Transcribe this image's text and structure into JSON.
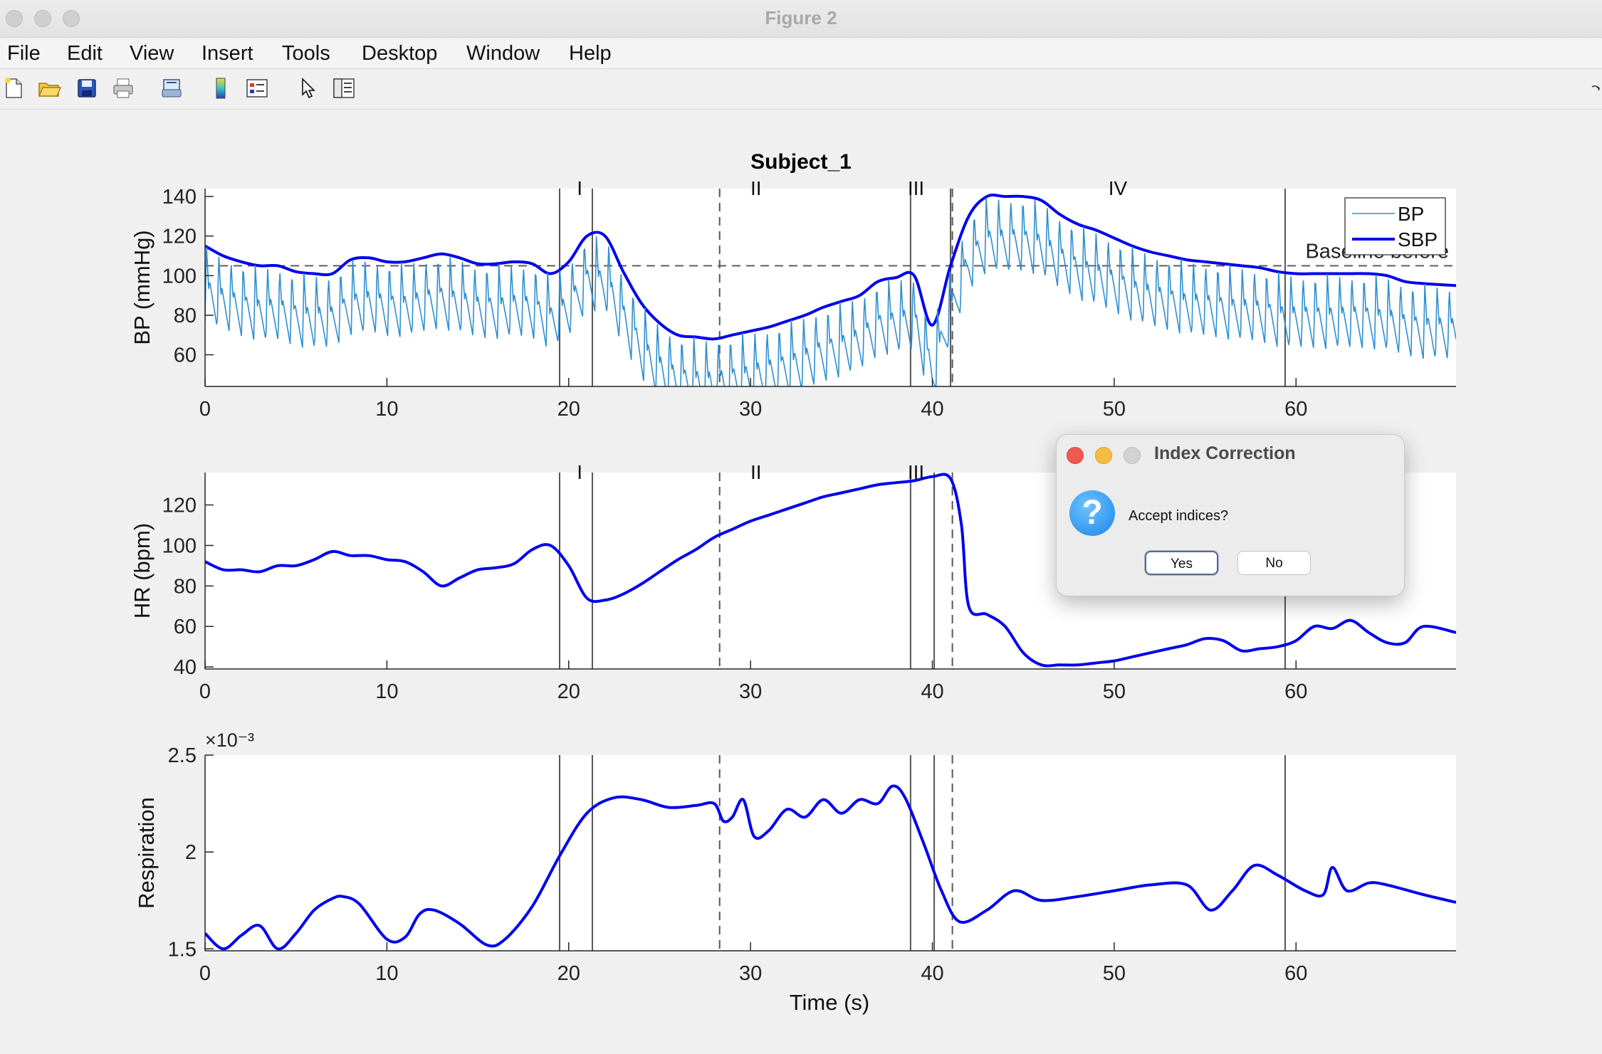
{
  "window": {
    "title": "Figure 2"
  },
  "menu": [
    "File",
    "Edit",
    "View",
    "Insert",
    "Tools",
    "Desktop",
    "Window",
    "Help"
  ],
  "toolbar_icons": [
    "new-file-icon",
    "open-folder-icon",
    "save-icon",
    "print-icon",
    "print-preview-icon",
    "colorbar-icon",
    "legend-icon",
    "pointer-icon",
    "property-inspector-icon"
  ],
  "figure": {
    "title": "Subject_1",
    "xlabel": "Time (s)"
  },
  "dialog": {
    "title": "Index Correction",
    "message": "Accept indices?",
    "yes_label": "Yes",
    "no_label": "No"
  },
  "chart_data": [
    {
      "type": "line",
      "ylabel": "BP (mmHg)",
      "xlim": [
        0,
        68.8
      ],
      "ylim": [
        44,
        144
      ],
      "xticks": [
        0,
        10,
        20,
        30,
        40,
        50,
        60
      ],
      "yticks": [
        60,
        80,
        100,
        120,
        140
      ],
      "grid": false,
      "legend": {
        "position": "top-right",
        "entries": [
          "BP",
          "SBP"
        ]
      },
      "annotations": [
        "I",
        "II",
        "III",
        "IV",
        "Baseline before"
      ],
      "baseline_label": "Baseline before",
      "baseline_value": 105,
      "phase_labels": [
        {
          "text": "I",
          "x": 20.6
        },
        {
          "text": "II",
          "x": 30.3
        },
        {
          "text": "III",
          "x": 39.1
        },
        {
          "text": "IV",
          "x": 50.2
        }
      ],
      "vlines_solid": [
        19.5,
        21.3,
        38.8,
        41.0,
        59.4
      ],
      "vlines_dashed": [
        28.3,
        41.1
      ],
      "series": [
        {
          "name": "SBP",
          "color": "#0000ee",
          "x": [
            0,
            1,
            2,
            3,
            4,
            5,
            6,
            7,
            8,
            9,
            10,
            11,
            12,
            13,
            14,
            15,
            16,
            17,
            18,
            19,
            20,
            21,
            22,
            23,
            24,
            25,
            26,
            27,
            28,
            29,
            30,
            31,
            32,
            33,
            34,
            35,
            36,
            37,
            38,
            39,
            40,
            41,
            42,
            43,
            44,
            45,
            46,
            47,
            48,
            49,
            50,
            51,
            52,
            53,
            54,
            55,
            56,
            57,
            58,
            59,
            60,
            61,
            62,
            63,
            64,
            65,
            66,
            67,
            68.8
          ],
          "y": [
            115,
            110,
            107,
            105,
            105,
            102,
            101,
            101,
            108,
            109,
            107,
            107,
            109,
            111,
            109,
            106,
            106,
            107,
            106,
            101,
            107,
            120,
            120,
            102,
            86,
            76,
            70,
            69,
            68,
            70,
            72,
            74,
            77,
            80,
            84,
            87,
            90,
            97,
            99,
            100,
            75,
            105,
            130,
            140,
            140,
            140,
            138,
            131,
            126,
            123,
            119,
            115,
            112,
            110,
            108,
            107,
            106,
            105,
            104,
            102,
            101,
            101,
            101,
            101,
            101,
            100,
            97,
            96,
            95
          ]
        },
        {
          "name": "BP",
          "color": "#2f8fd0",
          "pulsatile": true,
          "heart_period_s": 0.67,
          "diastolic_offset_mmHg": 38
        }
      ]
    },
    {
      "type": "line",
      "ylabel": "HR (bpm)",
      "xlim": [
        0,
        68.8
      ],
      "ylim": [
        39,
        136
      ],
      "xticks": [
        0,
        10,
        20,
        30,
        40,
        50,
        60
      ],
      "yticks": [
        40,
        60,
        80,
        100,
        120
      ],
      "grid": false,
      "phase_labels": [
        {
          "text": "I",
          "x": 20.6
        },
        {
          "text": "II",
          "x": 30.3
        },
        {
          "text": "III",
          "x": 39.1
        }
      ],
      "vlines_solid": [
        19.5,
        21.3,
        38.8,
        40.1,
        59.4
      ],
      "vlines_dashed": [
        28.3,
        41.1
      ],
      "series": [
        {
          "name": "HR",
          "color": "#0000ee",
          "x": [
            0,
            1,
            2,
            3,
            4,
            5,
            6,
            7,
            8,
            9,
            10,
            11,
            12,
            13,
            14,
            15,
            16,
            17,
            18,
            19,
            20,
            21,
            22,
            23,
            24,
            25,
            26,
            27,
            28,
            29,
            30,
            31,
            32,
            33,
            34,
            35,
            36,
            37,
            38,
            39,
            40,
            41,
            41.6,
            42,
            43,
            44,
            45,
            46,
            47,
            48,
            49,
            50,
            51,
            52,
            53,
            54,
            55,
            56,
            57,
            58,
            59,
            60,
            61,
            62,
            63,
            64,
            65,
            66,
            67,
            68.8
          ],
          "y": [
            92,
            88,
            88,
            87,
            90,
            90,
            93,
            97,
            95,
            95,
            93,
            92,
            87,
            80,
            84,
            88,
            89,
            91,
            98,
            100,
            90,
            74,
            73,
            76,
            81,
            87,
            93,
            98,
            104,
            108,
            112,
            115,
            118,
            121,
            124,
            126,
            128,
            130,
            131,
            132,
            134,
            133,
            110,
            70,
            66,
            60,
            47,
            41,
            41,
            41,
            42,
            43,
            45,
            47,
            49,
            51,
            54,
            53,
            48,
            49,
            50,
            53,
            60,
            59,
            63,
            57,
            52,
            52,
            60,
            57
          ]
        }
      ]
    },
    {
      "type": "line",
      "ylabel": "Respiration",
      "exponent_label": "×10⁻³",
      "xlim": [
        0,
        68.8
      ],
      "ylim": [
        1.49,
        2.5
      ],
      "xticks": [
        0,
        10,
        20,
        30,
        40,
        50,
        60
      ],
      "yticks": [
        1.5,
        2,
        2.5
      ],
      "ytick_labels": [
        "1.5",
        "2",
        "2.5"
      ],
      "grid": false,
      "vlines_solid": [
        19.5,
        21.3,
        38.8,
        40.1,
        59.4
      ],
      "vlines_dashed": [
        28.3,
        41.1
      ],
      "series": [
        {
          "name": "Respiration",
          "color": "#0000ee",
          "x": [
            0,
            1,
            2,
            3,
            4,
            5,
            6,
            7,
            7.6,
            8.5,
            10,
            11,
            11.8,
            12.6,
            14,
            15.5,
            16.5,
            18,
            19.5,
            21,
            22.5,
            24,
            25.5,
            27,
            28,
            28.5,
            29,
            29.6,
            30.2,
            31,
            32,
            33,
            34,
            35,
            36,
            37,
            37.8,
            38.5,
            39.5,
            40.5,
            41.5,
            43,
            44.5,
            46,
            48,
            50,
            52,
            54,
            55.3,
            56.5,
            57.7,
            59,
            60.5,
            61.5,
            62,
            62.8,
            64,
            65,
            67,
            68.8
          ],
          "y": [
            1.58,
            1.5,
            1.57,
            1.62,
            1.5,
            1.58,
            1.7,
            1.76,
            1.77,
            1.73,
            1.55,
            1.56,
            1.68,
            1.7,
            1.63,
            1.52,
            1.55,
            1.72,
            1.98,
            2.2,
            2.28,
            2.27,
            2.23,
            2.24,
            2.25,
            2.16,
            2.18,
            2.27,
            2.08,
            2.11,
            2.22,
            2.18,
            2.27,
            2.2,
            2.27,
            2.25,
            2.34,
            2.28,
            2.05,
            1.8,
            1.64,
            1.7,
            1.8,
            1.75,
            1.77,
            1.8,
            1.83,
            1.83,
            1.7,
            1.8,
            1.93,
            1.88,
            1.8,
            1.78,
            1.92,
            1.8,
            1.84,
            1.83,
            1.78,
            1.74
          ]
        }
      ]
    }
  ]
}
